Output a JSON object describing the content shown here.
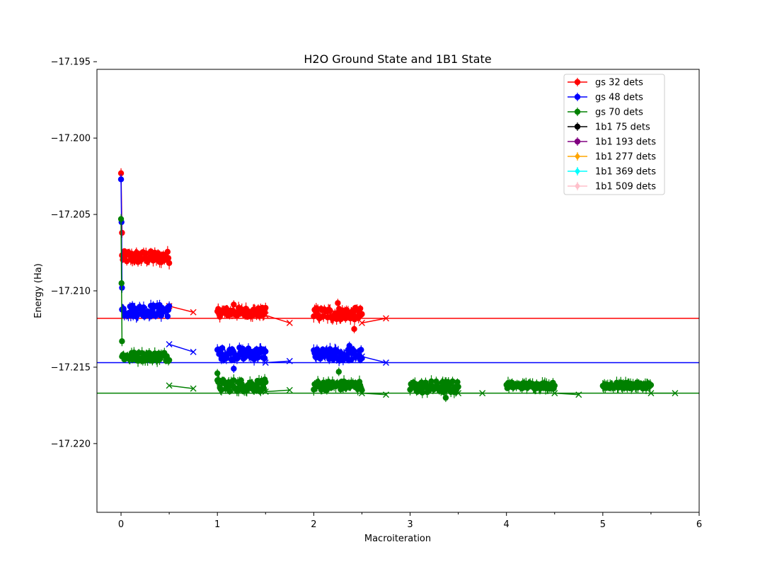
{
  "chart_data": {
    "type": "scatter",
    "title": "H2O Ground State and 1B1 State",
    "xlabel": "Macroiteration",
    "ylabel": "Energy (Ha)",
    "xlim": [
      -0.25,
      6.0
    ],
    "ylim": [
      -17.2245,
      -17.1955
    ],
    "xticks": [
      0,
      1,
      2,
      3,
      4,
      5,
      6
    ],
    "xtick_labels": [
      "0",
      "1",
      "2",
      "3",
      "4",
      "5",
      "6"
    ],
    "yticks": [
      -17.22,
      -17.215,
      -17.21,
      -17.205,
      -17.2,
      -17.195
    ],
    "ytick_labels": [
      "−17.220",
      "−17.215",
      "−17.210",
      "−17.205",
      "−17.200",
      "−17.195"
    ],
    "grid": false,
    "legend_position": "upper right",
    "legend": [
      {
        "label": "gs 32 dets",
        "color": "#ff0000",
        "marker": "circle"
      },
      {
        "label": "gs 48 dets",
        "color": "#0000ff",
        "marker": "circle"
      },
      {
        "label": "gs 70 dets",
        "color": "#008000",
        "marker": "circle"
      },
      {
        "label": "1b1 75 dets",
        "color": "#000000",
        "marker": "circle"
      },
      {
        "label": "1b1 193 dets",
        "color": "#800080",
        "marker": "circle"
      },
      {
        "label": "1b1 277 dets",
        "color": "#ffa500",
        "marker": "diamond"
      },
      {
        "label": "1b1 369 dets",
        "color": "#00ffff",
        "marker": "diamond"
      },
      {
        "label": "1b1 509 dets",
        "color": "#ffc0cb",
        "marker": "diamond"
      }
    ],
    "reference_lines": [
      {
        "color": "#ff0000",
        "y": -17.2118
      },
      {
        "color": "#0000ff",
        "y": -17.2147
      },
      {
        "color": "#008000",
        "y": -17.2167
      }
    ],
    "series": [
      {
        "name": "gs 32 dets",
        "color": "#ff0000",
        "initial_descent": {
          "x": [
            0,
            0.01
          ],
          "y": [
            -17.2023,
            -17.2062
          ]
        },
        "clusters": [
          {
            "x_start": 0.01,
            "x_end": 0.5,
            "y_center": -17.2078,
            "y_spread": 0.0004
          },
          {
            "x_start": 1.0,
            "x_end": 1.5,
            "y_center": -17.2114,
            "y_spread": 0.0003
          },
          {
            "x_start": 2.0,
            "x_end": 2.5,
            "y_center": -17.2115,
            "y_spread": 0.0004
          }
        ],
        "outliers": [
          {
            "x": 1.17,
            "y": -17.2109
          },
          {
            "x": 2.25,
            "y": -17.2108
          },
          {
            "x": 2.42,
            "y": -17.2125
          }
        ],
        "averages": {
          "x": [
            0.5,
            0.75,
            1.5,
            1.75,
            2.5,
            2.75
          ],
          "y": [
            -17.211,
            -17.2114,
            -17.2116,
            -17.2121,
            -17.2121,
            -17.2118
          ]
        }
      },
      {
        "name": "gs 48 dets",
        "color": "#0000ff",
        "initial_descent": {
          "x": [
            0,
            0.005,
            0.01
          ],
          "y": [
            -17.2027,
            -17.2055,
            -17.2098
          ]
        },
        "clusters": [
          {
            "x_start": 0.01,
            "x_end": 0.5,
            "y_center": -17.2113,
            "y_spread": 0.0004
          },
          {
            "x_start": 1.0,
            "x_end": 1.5,
            "y_center": -17.2141,
            "y_spread": 0.0004
          },
          {
            "x_start": 2.0,
            "x_end": 2.5,
            "y_center": -17.2142,
            "y_spread": 0.0004
          }
        ],
        "outliers": [
          {
            "x": 1.17,
            "y": -17.2151
          },
          {
            "x": 2.37,
            "y": -17.2136
          }
        ],
        "averages": {
          "x": [
            0.5,
            0.75,
            1.5,
            1.75,
            2.5,
            2.75
          ],
          "y": [
            -17.2135,
            -17.214,
            -17.2147,
            -17.2146,
            -17.2143,
            -17.2147
          ]
        }
      },
      {
        "name": "gs 70 dets",
        "color": "#008000",
        "initial_descent": {
          "x": [
            0,
            0.005,
            0.01
          ],
          "y": [
            -17.2053,
            -17.2095,
            -17.2133
          ]
        },
        "clusters": [
          {
            "x_start": 0.01,
            "x_end": 0.5,
            "y_center": -17.2143,
            "y_spread": 0.0003
          },
          {
            "x_start": 1.0,
            "x_end": 1.5,
            "y_center": -17.2162,
            "y_spread": 0.0004
          },
          {
            "x_start": 2.0,
            "x_end": 2.5,
            "y_center": -17.2162,
            "y_spread": 0.0003
          },
          {
            "x_start": 3.0,
            "x_end": 3.5,
            "y_center": -17.2163,
            "y_spread": 0.0004
          },
          {
            "x_start": 4.0,
            "x_end": 4.5,
            "y_center": -17.2162,
            "y_spread": 0.0002
          },
          {
            "x_start": 5.0,
            "x_end": 5.5,
            "y_center": -17.2162,
            "y_spread": 0.0002
          }
        ],
        "outliers": [
          {
            "x": 1.0,
            "y": -17.2154
          },
          {
            "x": 2.26,
            "y": -17.2153
          },
          {
            "x": 3.37,
            "y": -17.217
          }
        ],
        "averages": {
          "x": [
            0.5,
            0.75,
            1.5,
            1.75,
            2.5,
            2.75,
            3.5,
            3.75,
            4.5,
            4.75,
            5.5,
            5.75
          ],
          "y": [
            -17.2162,
            -17.2164,
            -17.2166,
            -17.2165,
            -17.2167,
            -17.2168,
            -17.2167,
            -17.2167,
            -17.2167,
            -17.2168,
            -17.2167,
            -17.2167
          ]
        }
      }
    ]
  }
}
